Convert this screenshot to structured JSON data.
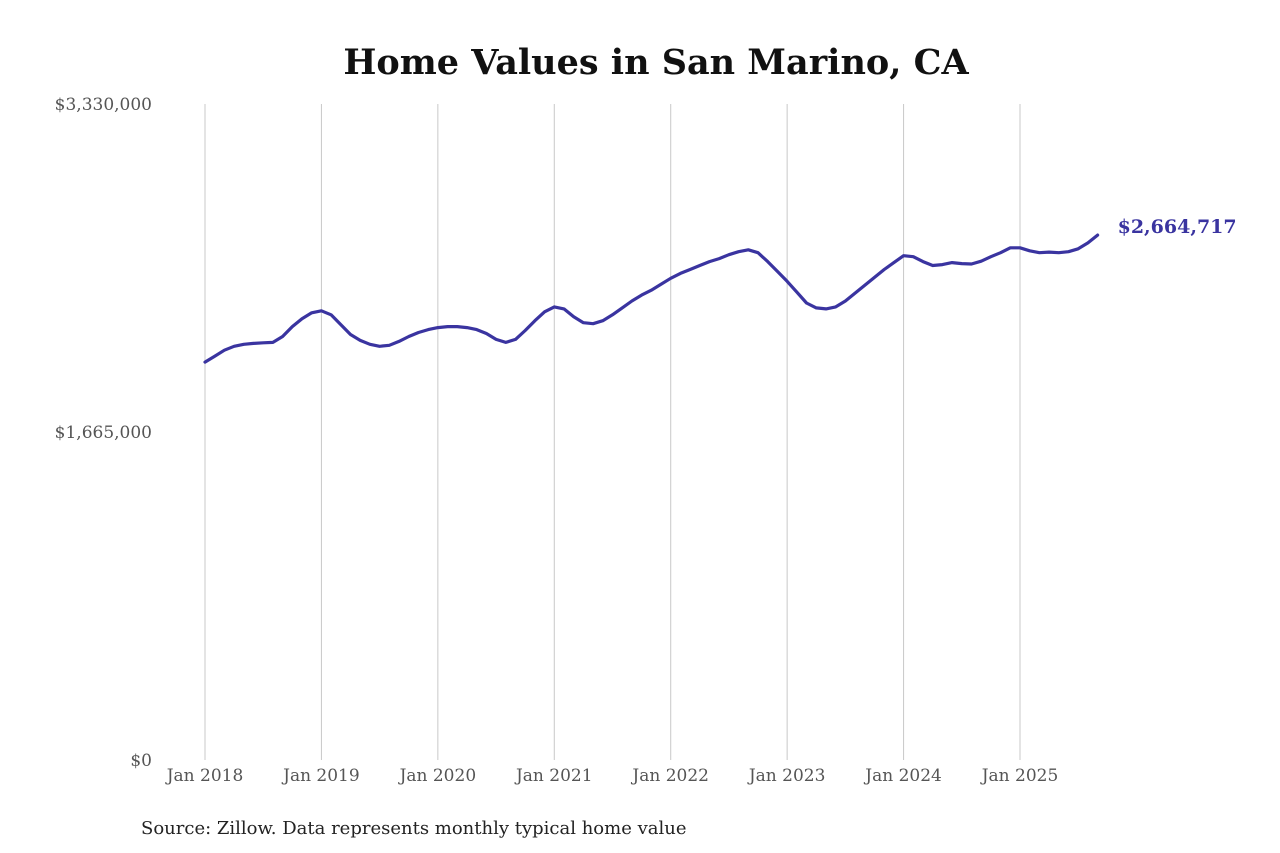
{
  "chart_data": {
    "type": "line",
    "title": "Home Values in San Marino, CA",
    "source": "Source: Zillow. Data represents monthly typical home value",
    "ylim": [
      0,
      3330000
    ],
    "yticks": [
      {
        "value": 0,
        "label": "$0"
      },
      {
        "value": 1665000,
        "label": "$1,665,000"
      },
      {
        "value": 3330000,
        "label": "$3,330,000"
      }
    ],
    "xticks": [
      {
        "value": "2018-01",
        "label": "Jan 2018"
      },
      {
        "value": "2019-01",
        "label": "Jan 2019"
      },
      {
        "value": "2020-01",
        "label": "Jan 2020"
      },
      {
        "value": "2021-01",
        "label": "Jan 2021"
      },
      {
        "value": "2022-01",
        "label": "Jan 2022"
      },
      {
        "value": "2023-01",
        "label": "Jan 2023"
      },
      {
        "value": "2024-01",
        "label": "Jan 2024"
      },
      {
        "value": "2025-01",
        "label": "Jan 2025"
      }
    ],
    "grid": "vertical",
    "colors": {
      "line": "#3a34a0",
      "grid": "#c8c8c8"
    },
    "end_label": "$2,664,717",
    "series": [
      {
        "x": [
          "2018-01",
          "2018-02",
          "2018-03",
          "2018-04",
          "2018-05",
          "2018-06",
          "2018-07",
          "2018-08",
          "2018-09",
          "2018-10",
          "2018-11",
          "2018-12",
          "2019-01",
          "2019-02",
          "2019-03",
          "2019-04",
          "2019-05",
          "2019-06",
          "2019-07",
          "2019-08",
          "2019-09",
          "2019-10",
          "2019-11",
          "2019-12",
          "2020-01",
          "2020-02",
          "2020-03",
          "2020-04",
          "2020-05",
          "2020-06",
          "2020-07",
          "2020-08",
          "2020-09",
          "2020-10",
          "2020-11",
          "2020-12",
          "2021-01",
          "2021-02",
          "2021-03",
          "2021-04",
          "2021-05",
          "2021-06",
          "2021-07",
          "2021-08",
          "2021-09",
          "2021-10",
          "2021-11",
          "2021-12",
          "2022-01",
          "2022-02",
          "2022-03",
          "2022-04",
          "2022-05",
          "2022-06",
          "2022-07",
          "2022-08",
          "2022-09",
          "2022-10",
          "2022-11",
          "2022-12",
          "2023-01",
          "2023-02",
          "2023-03",
          "2023-04",
          "2023-05",
          "2023-06",
          "2023-07",
          "2023-08",
          "2023-09",
          "2023-10",
          "2023-11",
          "2023-12",
          "2024-01",
          "2024-02",
          "2024-03",
          "2024-04",
          "2024-05",
          "2024-06",
          "2024-07",
          "2024-08",
          "2024-09",
          "2024-10",
          "2024-11",
          "2024-12",
          "2025-01",
          "2025-02",
          "2025-03",
          "2025-04",
          "2025-05",
          "2025-06",
          "2025-07",
          "2025-08",
          "2025-09"
        ],
        "values": [
          2020000,
          2050000,
          2080000,
          2100000,
          2110000,
          2115000,
          2118000,
          2120000,
          2150000,
          2200000,
          2240000,
          2270000,
          2280000,
          2260000,
          2210000,
          2160000,
          2130000,
          2110000,
          2100000,
          2105000,
          2125000,
          2150000,
          2170000,
          2185000,
          2195000,
          2200000,
          2200000,
          2195000,
          2185000,
          2165000,
          2135000,
          2120000,
          2135000,
          2180000,
          2230000,
          2275000,
          2300000,
          2290000,
          2250000,
          2220000,
          2215000,
          2230000,
          2260000,
          2295000,
          2330000,
          2360000,
          2385000,
          2415000,
          2445000,
          2470000,
          2490000,
          2510000,
          2530000,
          2545000,
          2565000,
          2580000,
          2590000,
          2575000,
          2530000,
          2480000,
          2430000,
          2375000,
          2320000,
          2295000,
          2290000,
          2300000,
          2330000,
          2370000,
          2410000,
          2450000,
          2490000,
          2525000,
          2560000,
          2555000,
          2530000,
          2510000,
          2515000,
          2525000,
          2520000,
          2518000,
          2532000,
          2555000,
          2575000,
          2600000,
          2600000,
          2585000,
          2575000,
          2578000,
          2575000,
          2580000,
          2595000,
          2625000,
          2664717
        ]
      }
    ]
  }
}
